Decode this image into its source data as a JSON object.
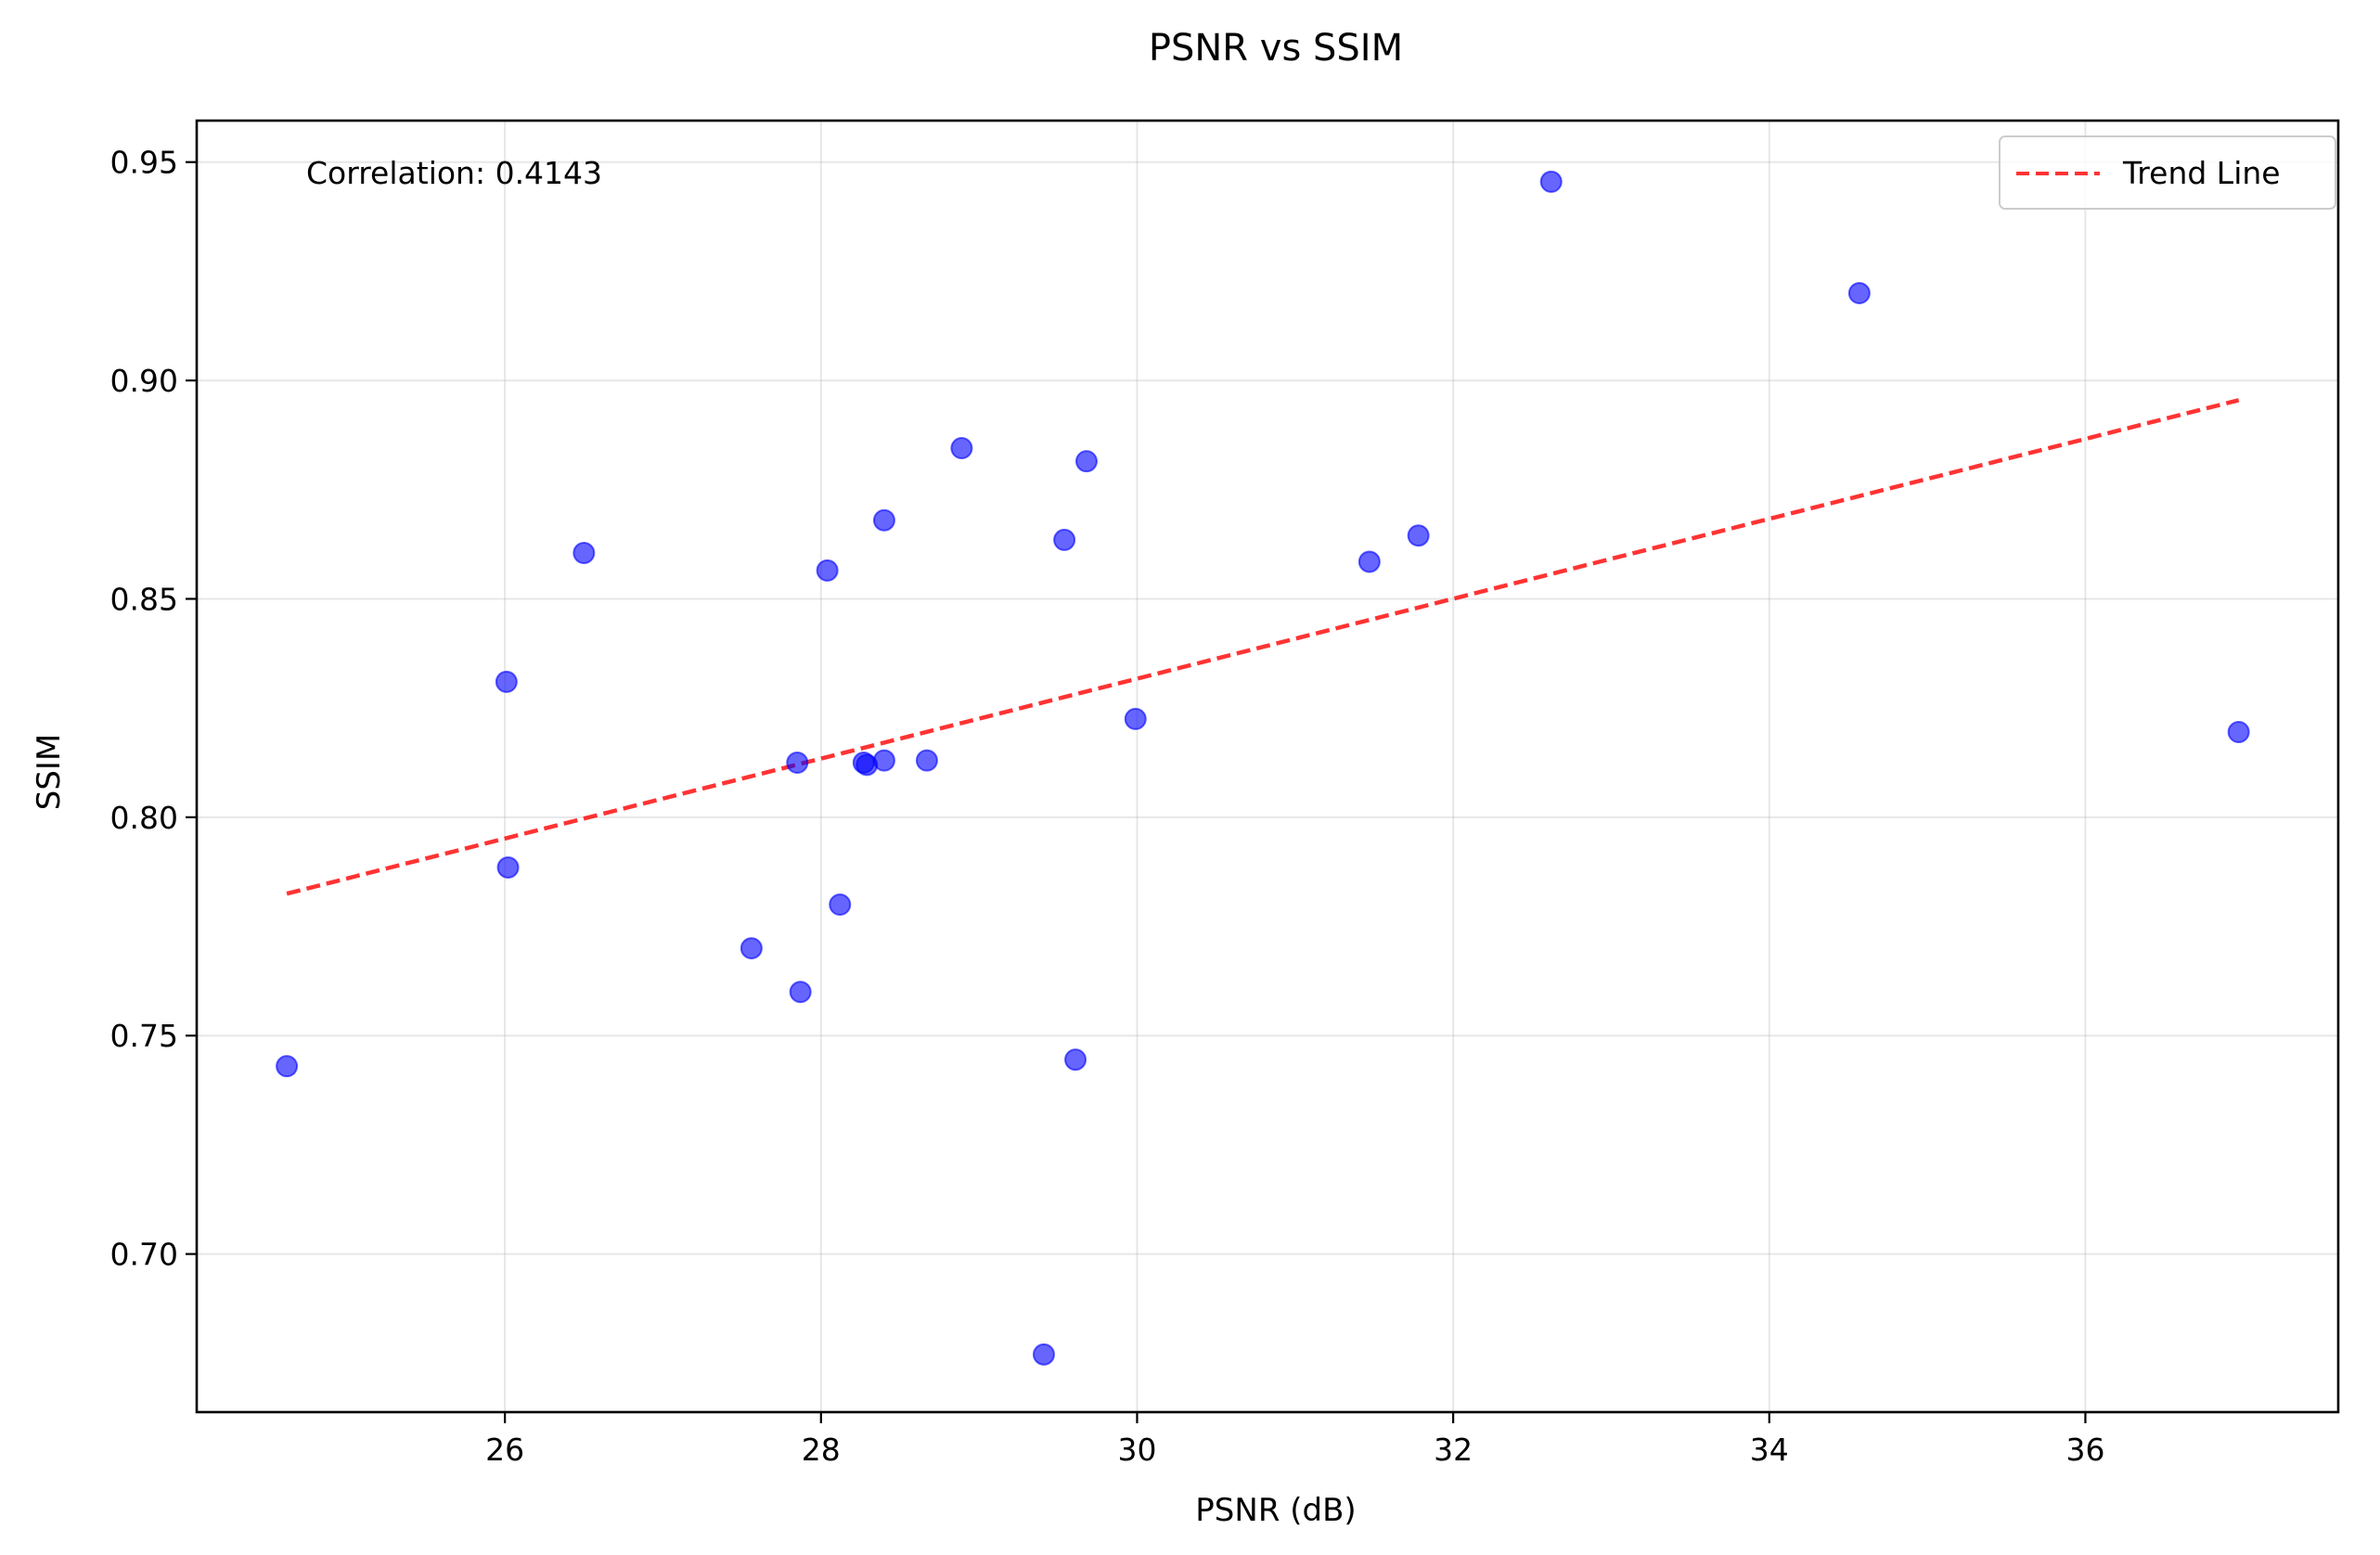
{
  "chart_data": {
    "type": "scatter",
    "title": "PSNR vs SSIM",
    "xlabel": "PSNR (dB)",
    "ylabel": "SSIM",
    "xlim": [
      24.05,
      37.6
    ],
    "ylim": [
      0.6638,
      0.9595
    ],
    "xticks": [
      26,
      28,
      30,
      32,
      34,
      36
    ],
    "yticks": [
      0.7,
      0.75,
      0.8,
      0.85,
      0.9,
      0.95
    ],
    "xtick_labels": [
      "26",
      "28",
      "30",
      "32",
      "34",
      "36"
    ],
    "ytick_labels": [
      "0.70",
      "0.75",
      "0.80",
      "0.85",
      "0.90",
      "0.95"
    ],
    "grid": true,
    "annotation": "Correlation: 0.4143",
    "legend": {
      "position": "top-right",
      "entries": [
        "Trend Line"
      ]
    },
    "points_color": "#0000ff",
    "trend_color": "#ff0000",
    "series": [
      {
        "name": "",
        "x": [
          24.62,
          26.01,
          26.02,
          26.5,
          27.56,
          27.85,
          27.87,
          28.04,
          28.12,
          28.27,
          28.29,
          28.4,
          28.4,
          28.67,
          28.89,
          29.41,
          29.54,
          29.61,
          29.68,
          29.99,
          31.47,
          31.78,
          32.62,
          34.57,
          36.97
        ],
        "y": [
          0.743,
          0.831,
          0.7885,
          0.8605,
          0.77,
          0.8125,
          0.76,
          0.8565,
          0.78,
          0.8125,
          0.812,
          0.868,
          0.813,
          0.813,
          0.8845,
          0.677,
          0.8635,
          0.7445,
          0.8815,
          0.8225,
          0.8585,
          0.8645,
          0.9455,
          0.92,
          0.8195
        ]
      },
      {
        "name": "Trend Line",
        "type": "line",
        "style": "dashed",
        "x": [
          24.62,
          36.97
        ],
        "y": [
          0.7825,
          0.8955
        ]
      }
    ]
  }
}
